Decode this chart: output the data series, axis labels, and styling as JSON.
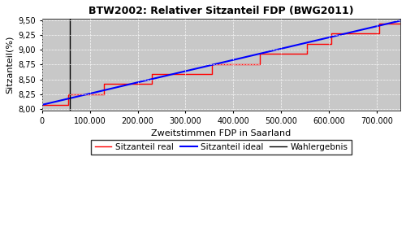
{
  "title": "BTW2002: Relativer Sitzanteil FDP (BWG2011)",
  "xlabel": "Zweitstimmen FDP in Saarland",
  "ylabel": "Sitzanteil(%)",
  "xlim": [
    0,
    750000
  ],
  "ylim": [
    7.97,
    9.53
  ],
  "yticks": [
    8.0,
    8.25,
    8.5,
    8.75,
    9.0,
    9.25,
    9.5
  ],
  "xticks": [
    0,
    100000,
    200000,
    300000,
    400000,
    500000,
    600000,
    700000
  ],
  "xtick_labels": [
    "0",
    "100.000",
    "200.000",
    "300.000",
    "400.000",
    "500.000",
    "600.000",
    "700.000"
  ],
  "ideal_start_x": 0,
  "ideal_start_y": 8.07,
  "ideal_end_x": 750000,
  "ideal_end_y": 9.49,
  "wahlergebnis_x": 58000,
  "fig_bg_color": "#ffffff",
  "plot_bg_color": "#c8c8c8",
  "line_real_color": "red",
  "line_ideal_color": "blue",
  "line_wahl_color": "black",
  "legend_labels": [
    "Sitzanteil real",
    "Sitzanteil ideal",
    "Wahlergebnis"
  ],
  "real_steps_x": [
    0,
    30000,
    55000,
    80000,
    105000,
    130000,
    155000,
    180000,
    205000,
    230000,
    255000,
    280000,
    305000,
    330000,
    355000,
    380000,
    405000,
    430000,
    455000,
    480000,
    505000,
    530000,
    555000,
    580000,
    605000,
    630000,
    655000,
    680000,
    705000,
    730000,
    750000
  ],
  "real_steps_y": [
    8.07,
    8.07,
    8.25,
    8.25,
    8.25,
    8.42,
    8.42,
    8.42,
    8.42,
    8.59,
    8.59,
    8.59,
    8.59,
    8.59,
    8.76,
    8.76,
    8.76,
    8.76,
    8.93,
    8.93,
    8.93,
    8.93,
    9.1,
    9.1,
    9.27,
    9.27,
    9.27,
    9.27,
    9.44,
    9.44,
    9.44
  ]
}
